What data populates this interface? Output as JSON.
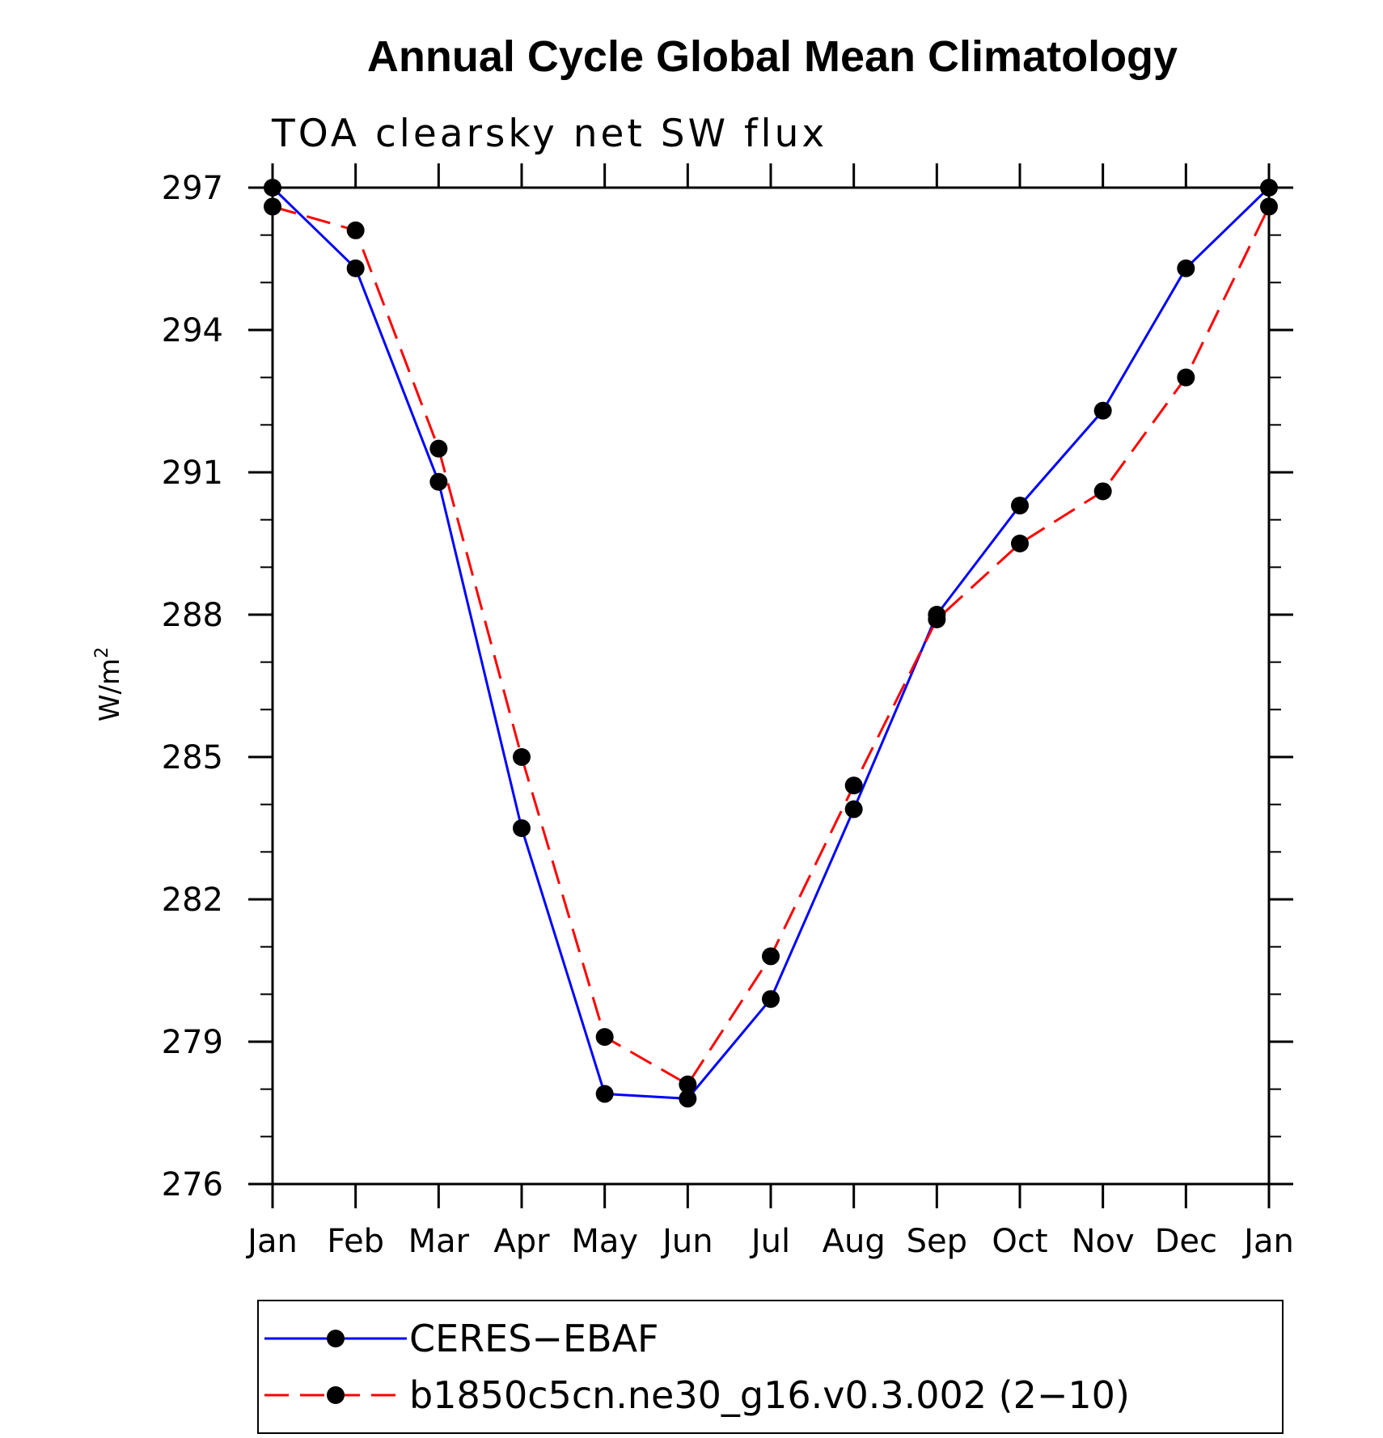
{
  "chart_data": {
    "type": "line",
    "title": "Annual Cycle Global Mean Climatology",
    "subtitle": "TOA clearsky net SW flux",
    "ylabel_base": "W/m",
    "ylabel_superscript": "2",
    "xlabel": "",
    "categories": [
      "Jan",
      "Feb",
      "Mar",
      "Apr",
      "May",
      "Jun",
      "Jul",
      "Aug",
      "Sep",
      "Oct",
      "Nov",
      "Dec",
      "Jan"
    ],
    "ylim": [
      276,
      297
    ],
    "yticks": [
      276,
      279,
      282,
      285,
      288,
      291,
      294,
      297
    ],
    "grid": false,
    "legend_position": "bottom",
    "series": [
      {
        "name": "CERES−EBAF",
        "color": "#0000ff",
        "line_style": "solid",
        "marker": "filled-circle",
        "values": [
          297.0,
          295.3,
          290.8,
          283.5,
          277.9,
          277.8,
          279.9,
          283.9,
          288.0,
          290.3,
          292.3,
          295.3,
          297.0
        ]
      },
      {
        "name": "b1850c5cn.ne30_g16.v0.3.002 (2−10)",
        "color": "#ff0000",
        "line_style": "dashed",
        "marker": "filled-circle",
        "values": [
          296.6,
          296.1,
          291.5,
          285.0,
          279.1,
          278.1,
          280.8,
          284.4,
          287.9,
          289.5,
          290.6,
          293.0,
          296.6
        ]
      }
    ]
  }
}
